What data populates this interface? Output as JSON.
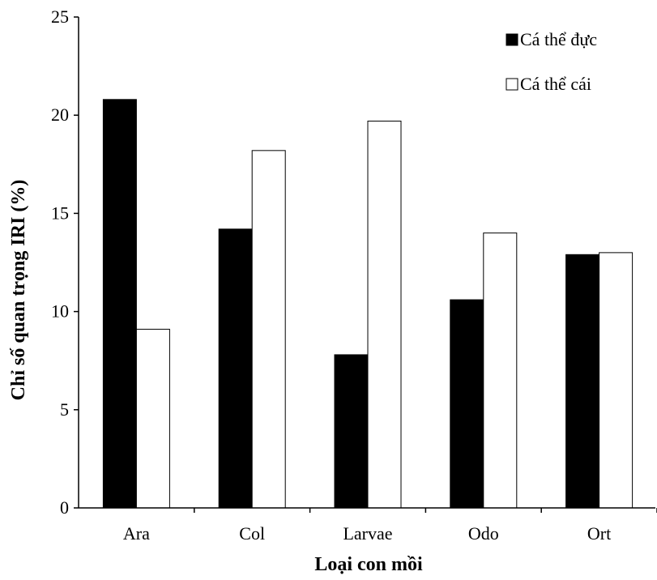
{
  "chart_data": {
    "type": "bar",
    "categories": [
      "Ara",
      "Col",
      "Larvae",
      "Odo",
      "Ort"
    ],
    "series": [
      {
        "name": "Cá thể đực",
        "values": [
          20.8,
          14.2,
          7.8,
          10.6,
          12.9
        ],
        "color": "#000000"
      },
      {
        "name": "Cá thể cái",
        "values": [
          9.1,
          18.2,
          19.7,
          14.0,
          13.0
        ],
        "color": "#ffffff"
      }
    ],
    "xlabel": "Loại con mồi",
    "ylabel": "Chỉ số quan trọng IRI (%)",
    "ylim": [
      0,
      25
    ],
    "yticks": [
      "0",
      "5",
      "10",
      "15",
      "20",
      "25"
    ],
    "grid": false,
    "legend_position": "top-right"
  }
}
